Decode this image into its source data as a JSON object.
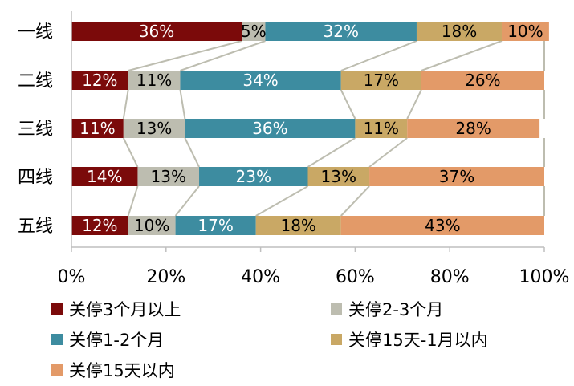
{
  "chart_data": {
    "type": "bar",
    "orientation": "horizontal",
    "stacked": true,
    "categories": [
      "一线",
      "二线",
      "三线",
      "四线",
      "五线"
    ],
    "series": [
      {
        "name": "关停3个月以上",
        "color": "#7b0a0a",
        "values": [
          36,
          12,
          11,
          14,
          12
        ],
        "labels": [
          "36%",
          "12%",
          "11%",
          "14%",
          "12%"
        ]
      },
      {
        "name": "关停2-3个月",
        "color": "#bdbdb0",
        "values": [
          5,
          11,
          13,
          13,
          10
        ],
        "labels": [
          "5%",
          "11%",
          "13%",
          "13%",
          "10%"
        ]
      },
      {
        "name": "关停1-2个月",
        "color": "#3d8ca0",
        "values": [
          32,
          34,
          36,
          23,
          17
        ],
        "labels": [
          "32%",
          "34%",
          "36%",
          "23%",
          "17%"
        ]
      },
      {
        "name": "关停15天-1月以内",
        "color": "#c9a865",
        "values": [
          18,
          17,
          11,
          13,
          18
        ],
        "labels": [
          "18%",
          "17%",
          "11%",
          "13%",
          "18%"
        ]
      },
      {
        "name": "关停15天以内",
        "color": "#e39a68",
        "values": [
          10,
          26,
          28,
          37,
          43
        ],
        "labels": [
          "10%",
          "26%",
          "28%",
          "37%",
          "43%"
        ]
      }
    ],
    "xlim": [
      0,
      100
    ],
    "x_ticks": [
      "0%",
      "20%",
      "40%",
      "60%",
      "80%",
      "100%"
    ],
    "series_lines": true,
    "legend_position": "bottom"
  }
}
